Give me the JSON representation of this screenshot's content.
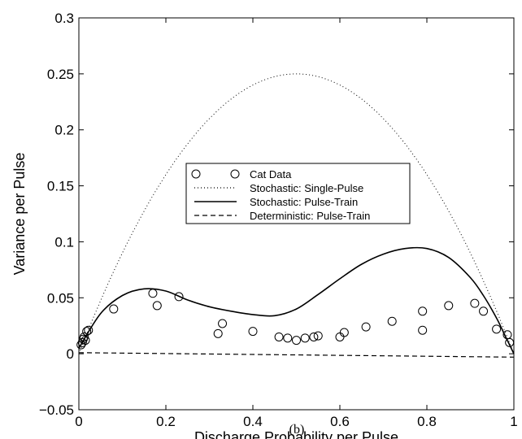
{
  "chart_data": {
    "type": "line",
    "title": "",
    "xlabel": "Discharge Probability per Pulse",
    "ylabel": "Variance per Pulse",
    "xlim": [
      0,
      1
    ],
    "ylim": [
      -0.05,
      0.3
    ],
    "xticks": [
      0,
      0.2,
      0.4,
      0.6,
      0.8,
      1
    ],
    "xtick_labels": [
      "0",
      "0.2",
      "0.4",
      "0.6",
      "0.8",
      "1"
    ],
    "yticks": [
      -0.05,
      0,
      0.05,
      0.1,
      0.15,
      0.2,
      0.25,
      0.3
    ],
    "ytick_labels": [
      "−0.05",
      "0",
      "0.05",
      "0.1",
      "0.15",
      "0.2",
      "0.25",
      "0.3"
    ],
    "grid": false,
    "legend_position": "center",
    "caption": "(b)",
    "series": [
      {
        "name": "Cat Data",
        "style": "circles",
        "points": [
          [
            0.005,
            0.008
          ],
          [
            0.008,
            0.01
          ],
          [
            0.01,
            0.013
          ],
          [
            0.012,
            0.015
          ],
          [
            0.015,
            0.012
          ],
          [
            0.018,
            0.02
          ],
          [
            0.022,
            0.021
          ],
          [
            0.08,
            0.04
          ],
          [
            0.17,
            0.054
          ],
          [
            0.18,
            0.043
          ],
          [
            0.23,
            0.051
          ],
          [
            0.32,
            0.018
          ],
          [
            0.33,
            0.027
          ],
          [
            0.4,
            0.02
          ],
          [
            0.46,
            0.015
          ],
          [
            0.48,
            0.014
          ],
          [
            0.5,
            0.012
          ],
          [
            0.52,
            0.014
          ],
          [
            0.54,
            0.015
          ],
          [
            0.55,
            0.016
          ],
          [
            0.6,
            0.015
          ],
          [
            0.61,
            0.019
          ],
          [
            0.66,
            0.024
          ],
          [
            0.72,
            0.029
          ],
          [
            0.79,
            0.038
          ],
          [
            0.79,
            0.021
          ],
          [
            0.85,
            0.043
          ],
          [
            0.91,
            0.045
          ],
          [
            0.93,
            0.038
          ],
          [
            0.96,
            0.022
          ],
          [
            0.985,
            0.017
          ],
          [
            0.99,
            0.01
          ]
        ]
      },
      {
        "name": "Stochastic: Single-Pulse",
        "style": "dotted",
        "formula": "p(1-p)"
      },
      {
        "name": "Stochastic: Pulse-Train",
        "style": "solid",
        "points": [
          [
            0,
            0.005
          ],
          [
            0.05,
            0.036
          ],
          [
            0.1,
            0.052
          ],
          [
            0.15,
            0.058
          ],
          [
            0.2,
            0.056
          ],
          [
            0.25,
            0.048
          ],
          [
            0.3,
            0.042
          ],
          [
            0.35,
            0.038
          ],
          [
            0.4,
            0.035
          ],
          [
            0.45,
            0.034
          ],
          [
            0.5,
            0.04
          ],
          [
            0.55,
            0.053
          ],
          [
            0.6,
            0.067
          ],
          [
            0.65,
            0.08
          ],
          [
            0.7,
            0.089
          ],
          [
            0.75,
            0.094
          ],
          [
            0.8,
            0.094
          ],
          [
            0.85,
            0.086
          ],
          [
            0.9,
            0.068
          ],
          [
            0.93,
            0.052
          ],
          [
            0.96,
            0.032
          ],
          [
            0.98,
            0.016
          ],
          [
            1.0,
            0.0
          ]
        ]
      },
      {
        "name": "Deterministic: Pulse-Train",
        "style": "dashed",
        "points": [
          [
            0,
            0.001
          ],
          [
            1.0,
            -0.003
          ]
        ]
      }
    ]
  }
}
